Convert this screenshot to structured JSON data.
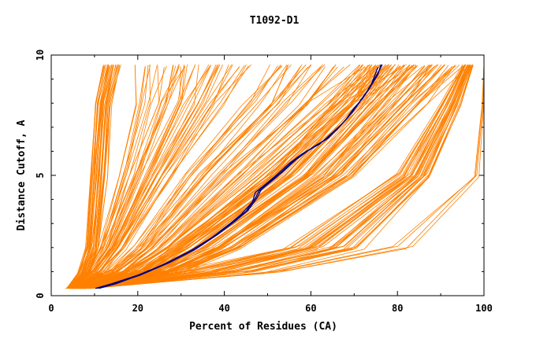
{
  "chart_data": {
    "type": "line",
    "title": "T1092-D1",
    "xlabel": "Percent of Residues (CA)",
    "ylabel": "Distance Cutoff, A",
    "xlim": [
      0,
      100
    ],
    "ylim": [
      0,
      10
    ],
    "x_ticks": [
      0,
      20,
      40,
      60,
      80,
      100
    ],
    "y_ticks": [
      0,
      5,
      10
    ],
    "grid": false,
    "legend": "none",
    "colors": {
      "models": "#ff8000",
      "highlight": "#000080"
    },
    "highlight_series": [
      {
        "points": [
          [
            10.2,
            0.3
          ],
          [
            14,
            0.5
          ],
          [
            20,
            0.85
          ],
          [
            26,
            1.3
          ],
          [
            32,
            1.85
          ],
          [
            37,
            2.4
          ],
          [
            41,
            2.95
          ],
          [
            44,
            3.4
          ],
          [
            46.5,
            3.9
          ],
          [
            47.2,
            4.3
          ],
          [
            49,
            4.55
          ],
          [
            52,
            5.0
          ],
          [
            55,
            5.5
          ],
          [
            58,
            5.9
          ],
          [
            62,
            6.3
          ],
          [
            66,
            6.9
          ],
          [
            68,
            7.3
          ],
          [
            70,
            7.8
          ],
          [
            72,
            8.2
          ],
          [
            74,
            8.8
          ],
          [
            75.5,
            9.5
          ]
        ]
      },
      {
        "points": [
          [
            10.5,
            0.3
          ],
          [
            14.5,
            0.5
          ],
          [
            20.5,
            0.85
          ],
          [
            27,
            1.35
          ],
          [
            33,
            1.9
          ],
          [
            38,
            2.5
          ],
          [
            42,
            3.05
          ],
          [
            45,
            3.5
          ],
          [
            47,
            4.0
          ],
          [
            48,
            4.35
          ],
          [
            50,
            4.65
          ],
          [
            53,
            5.1
          ],
          [
            56,
            5.6
          ],
          [
            59,
            6.0
          ],
          [
            63,
            6.45
          ],
          [
            67,
            7.1
          ],
          [
            69,
            7.5
          ],
          [
            71,
            8.0
          ],
          [
            73,
            8.5
          ],
          [
            75,
            9.1
          ],
          [
            76.5,
            9.6
          ]
        ]
      },
      {
        "points": [
          [
            11,
            0.3
          ],
          [
            15,
            0.5
          ],
          [
            21,
            0.9
          ],
          [
            27.5,
            1.4
          ],
          [
            33.5,
            1.95
          ],
          [
            38.5,
            2.55
          ],
          [
            42.5,
            3.1
          ],
          [
            45.5,
            3.55
          ],
          [
            47.5,
            4.05
          ],
          [
            48.5,
            4.4
          ],
          [
            50.5,
            4.7
          ],
          [
            53.5,
            5.15
          ],
          [
            56.5,
            5.65
          ],
          [
            59.5,
            6.05
          ],
          [
            64,
            6.55
          ],
          [
            67.5,
            7.2
          ],
          [
            69.5,
            7.6
          ],
          [
            71.5,
            8.1
          ],
          [
            73.5,
            8.6
          ],
          [
            75.5,
            9.2
          ],
          [
            76.2,
            9.6
          ]
        ]
      }
    ],
    "model_bundles": [
      {
        "count": 32,
        "x_at_cutoff": {
          "0.3": [
            3.5,
            6
          ],
          "1": [
            6,
            9
          ],
          "2": [
            8,
            11
          ],
          "5": [
            9,
            13
          ],
          "8": [
            10,
            14
          ],
          "9.6": [
            12,
            16
          ]
        }
      },
      {
        "count": 45,
        "x_at_cutoff": {
          "0.3": [
            3.5,
            6.5
          ],
          "1": [
            8,
            12
          ],
          "2": [
            11,
            17
          ],
          "5": [
            16,
            28
          ],
          "8": [
            20,
            40
          ],
          "9.6": [
            20,
            46
          ]
        }
      },
      {
        "count": 45,
        "x_at_cutoff": {
          "0.3": [
            3.5,
            7
          ],
          "1": [
            13,
            20
          ],
          "2": [
            19,
            30
          ],
          "5": [
            30,
            52
          ],
          "8": [
            45,
            72
          ],
          "9.6": [
            50,
            84
          ]
        }
      },
      {
        "count": 70,
        "x_at_cutoff": {
          "0.3": [
            4,
            8
          ],
          "1": [
            20,
            30
          ],
          "2": [
            28,
            44
          ],
          "5": [
            50,
            70
          ],
          "8": [
            66,
            86
          ],
          "9.6": [
            72,
            95
          ]
        }
      },
      {
        "count": 35,
        "x_at_cutoff": {
          "0.3": [
            4,
            9
          ],
          "1": [
            30,
            48
          ],
          "2": [
            54,
            72
          ],
          "5": [
            80,
            88
          ],
          "8": [
            90,
            95
          ],
          "9.6": [
            95,
            97.5
          ]
        }
      },
      {
        "count": 4,
        "x_at_cutoff": {
          "0.3": [
            4,
            10
          ],
          "1": [
            48,
            56
          ],
          "2": [
            78,
            84
          ],
          "5": [
            97.5,
            99
          ],
          "8": [
            99.5,
            100
          ],
          "9.6": [
            100,
            100
          ]
        }
      }
    ]
  }
}
